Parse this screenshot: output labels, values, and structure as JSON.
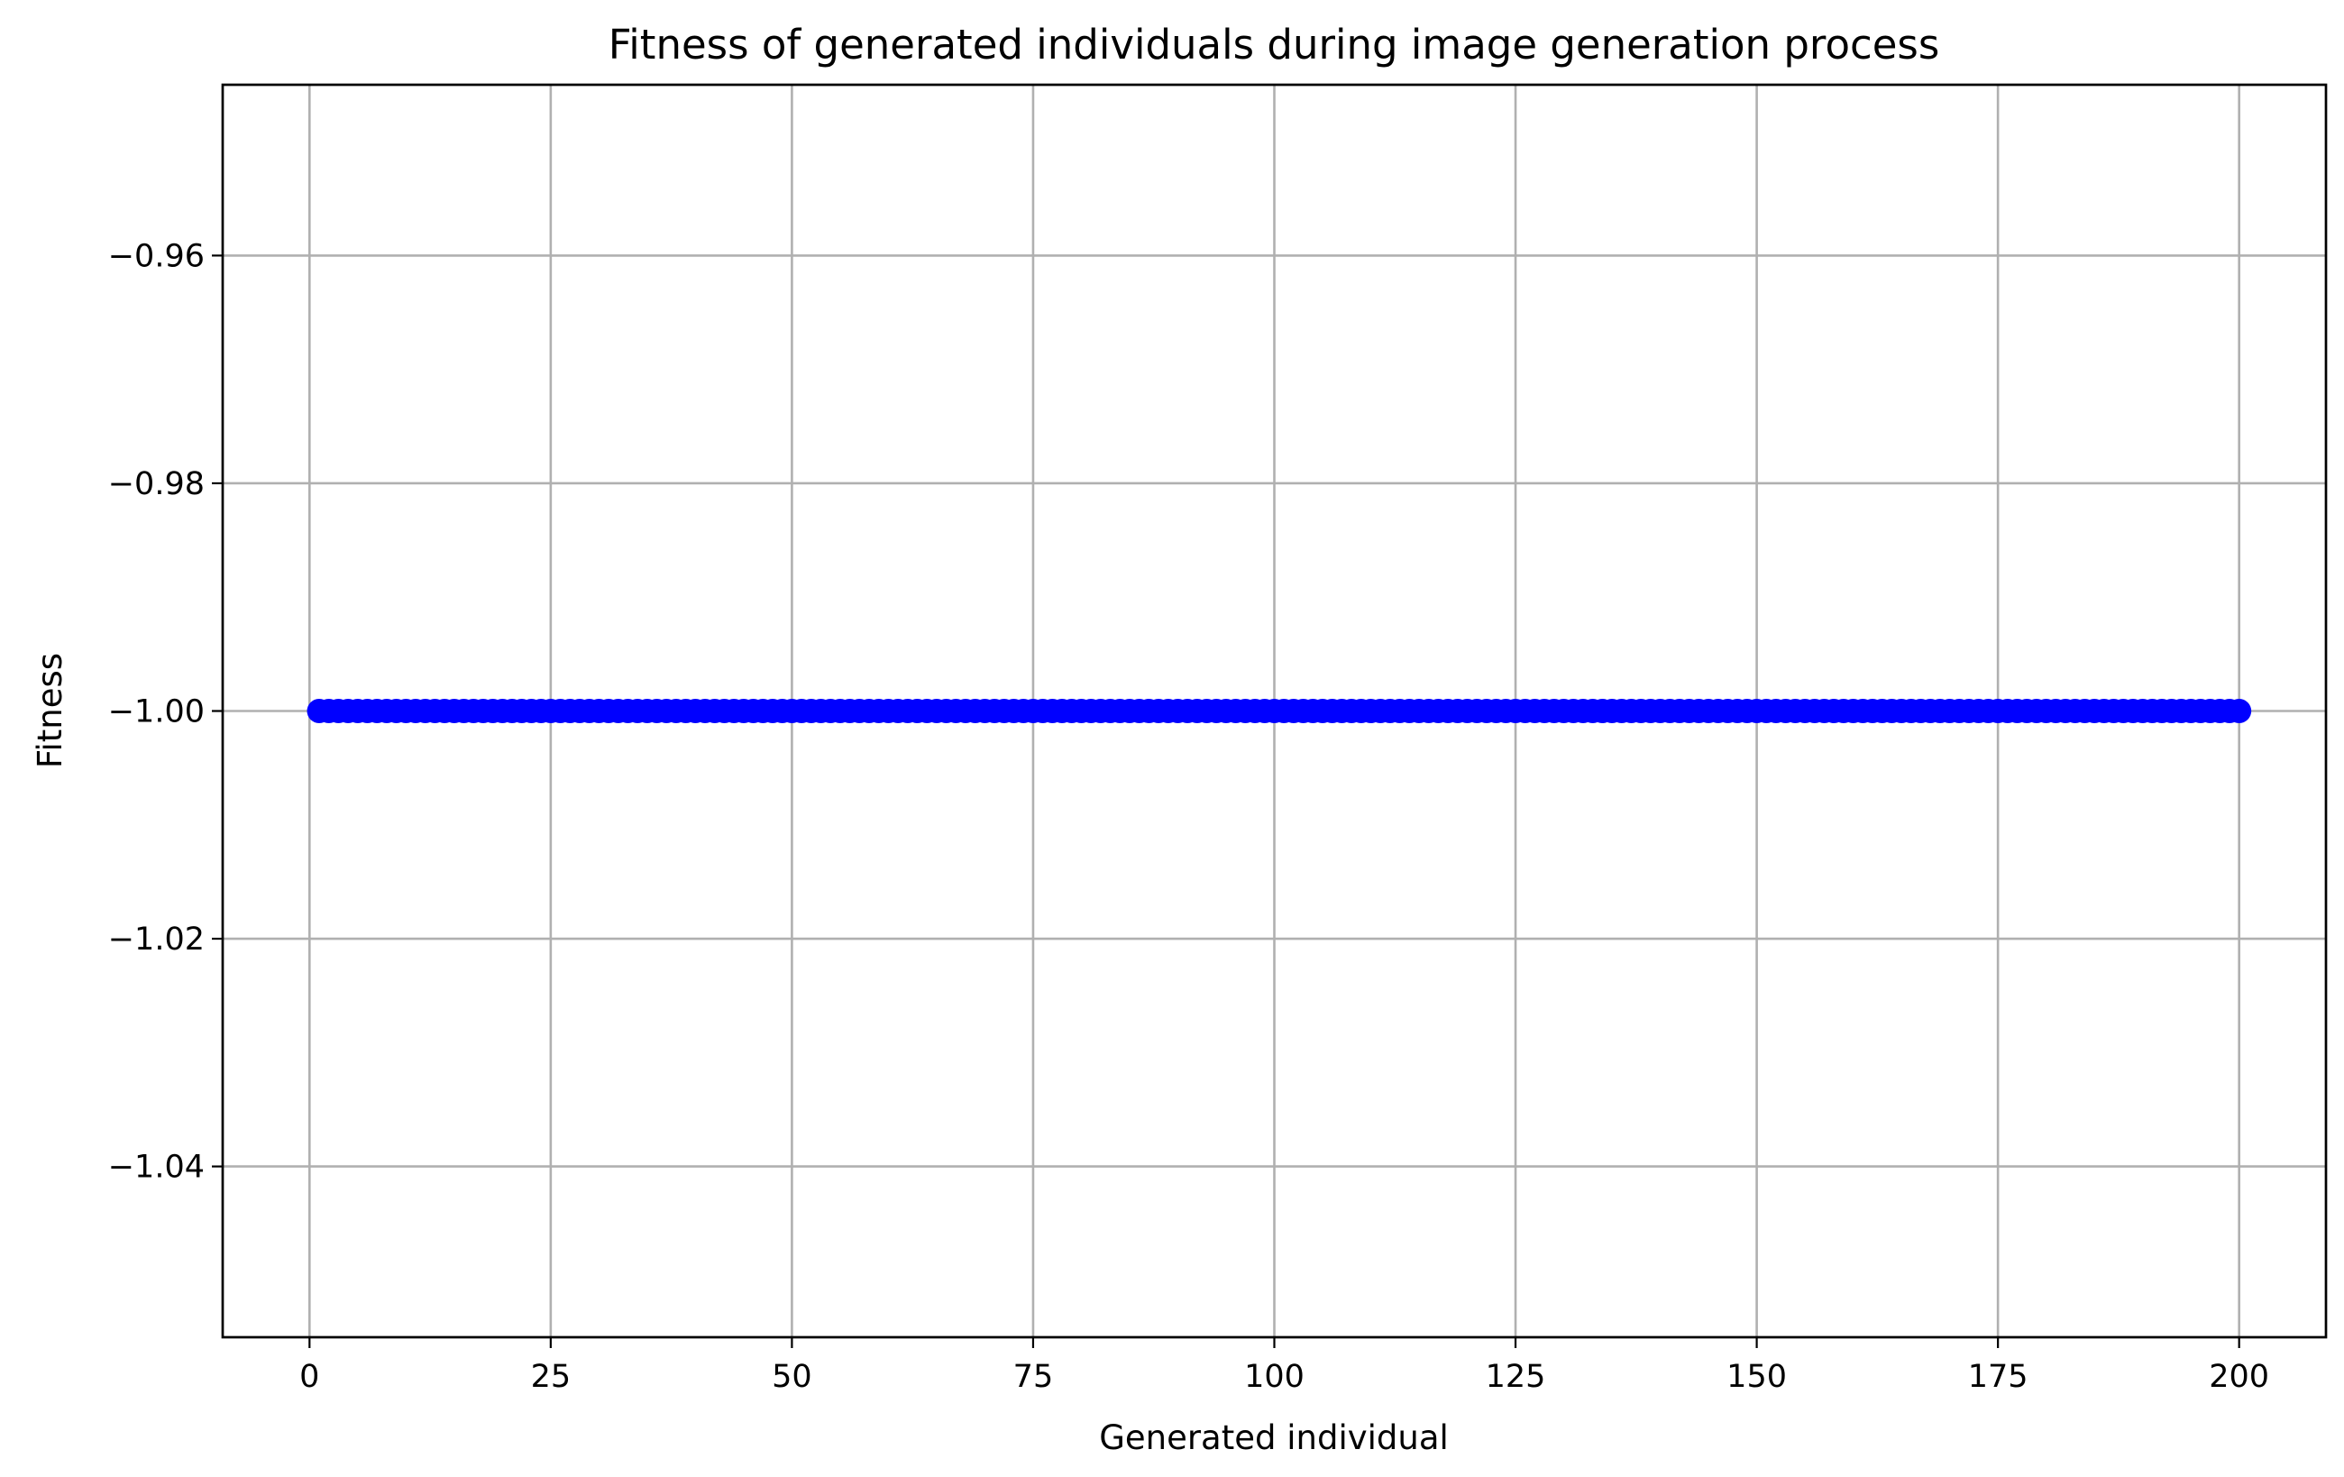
{
  "chart_data": {
    "type": "scatter",
    "title": "Fitness of generated individuals during image generation process",
    "xlabel": "Generated individual",
    "ylabel": "Fitness",
    "xlim": [
      -9,
      209
    ],
    "ylim": [
      -1.055,
      -0.945
    ],
    "xticks": [
      0,
      25,
      50,
      75,
      100,
      125,
      150,
      175,
      200
    ],
    "yticks": [
      -1.04,
      -1.02,
      -1.0,
      -0.98,
      -0.96
    ],
    "xtick_labels": [
      "0",
      "25",
      "50",
      "75",
      "100",
      "125",
      "150",
      "175",
      "200"
    ],
    "ytick_labels": [
      "−1.04",
      "−1.02",
      "−1.00",
      "−0.98",
      "−0.96"
    ],
    "grid": true,
    "marker_color": "#0000ff",
    "series": [
      {
        "x_start": 1,
        "x_end": 200,
        "x_step": 1,
        "y": -1.0
      }
    ]
  }
}
